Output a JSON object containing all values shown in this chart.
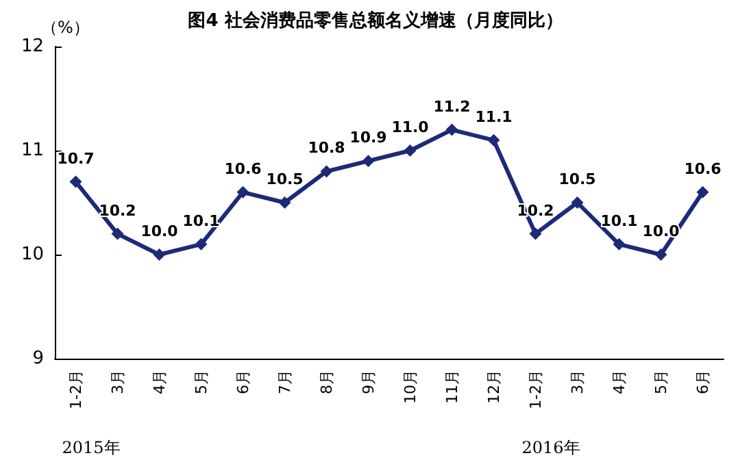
{
  "chart_data": {
    "type": "line",
    "title": "图4 社会消费品零售总额名义增速（月度同比）",
    "ylabel": "（%）",
    "categories": [
      "1-2月",
      "3月",
      "4月",
      "5月",
      "6月",
      "7月",
      "8月",
      "9月",
      "10月",
      "11月",
      "12月",
      "1-2月",
      "3月",
      "4月",
      "5月",
      "6月"
    ],
    "series": [
      {
        "color": "#1c2a78",
        "values": [
          10.7,
          10.2,
          10.0,
          10.1,
          10.6,
          10.5,
          10.8,
          10.9,
          11.0,
          11.2,
          11.1,
          10.2,
          10.5,
          10.1,
          10.0,
          10.6
        ],
        "value_labels": [
          "10.7",
          "10.2",
          "10.0",
          "10.1",
          "10.6",
          "10.5",
          "10.8",
          "10.9",
          "11.0",
          "11.2",
          "11.1",
          "10.2",
          "10.5",
          "10.1",
          "10.0",
          "10.6"
        ]
      }
    ],
    "ylim": [
      9,
      12
    ],
    "yticks": [
      9,
      10,
      11,
      12
    ],
    "marker": "diamond",
    "line_style": "solid",
    "grid": false,
    "annotations": [
      "2015年",
      "2016年"
    ]
  }
}
